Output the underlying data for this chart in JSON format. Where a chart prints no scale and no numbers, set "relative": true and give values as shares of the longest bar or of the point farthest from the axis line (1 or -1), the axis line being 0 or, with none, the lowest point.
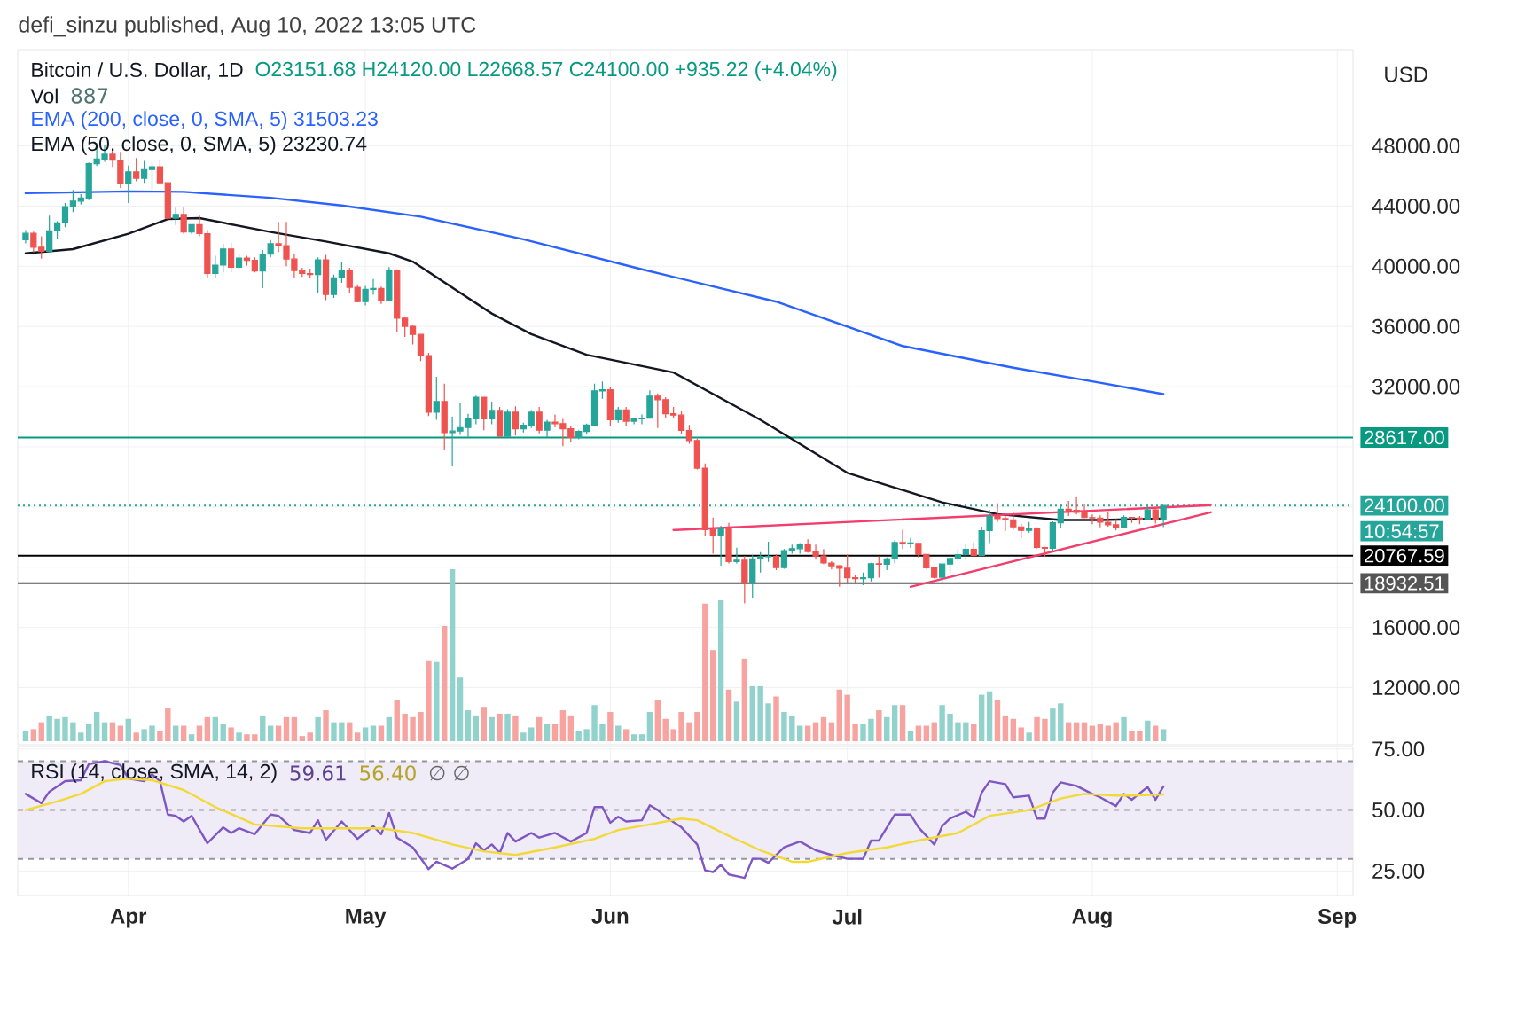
{
  "chart_data": [
    {
      "type": "candlestick",
      "title": "Bitcoin / U.S. Dollar, 1D",
      "subtitle": "O23151.68 H24120.00 L22668.57 C24100.00 +935.22 (+4.04%)",
      "ylabel": "USD",
      "annotations": [
        "defi_sinzu published, Aug 10, 2022 13:05 UTC",
        "10:54:57"
      ],
      "colors": [
        "#26a69a",
        "#ef5350",
        "#ef5350",
        "#26a69a",
        "#26a69a",
        "#26a69a",
        "#26a69a",
        "#26a69a",
        "#26a69a",
        "#26a69a",
        "#26a69a",
        "#ef5350",
        "#ef5350",
        "#26a69a",
        "#ef5350",
        "#26a69a",
        "#26a69a",
        "#ef5350",
        "#ef5350",
        "#26a69a",
        "#ef5350",
        "#26a69a",
        "#ef5350",
        "#ef5350",
        "#26a69a",
        "#26a69a",
        "#ef5350",
        "#26a69a",
        "#ef5350",
        "#ef5350",
        "#26a69a",
        "#26a69a",
        "#ef5350",
        "#ef5350",
        "#ef5350",
        "#ef5350",
        "#ef5350",
        "#26a69a",
        "#ef5350",
        "#26a69a",
        "#26a69a",
        "#ef5350",
        "#ef5350",
        "#26a69a",
        "#26a69a",
        "#ef5350",
        "#26a69a",
        "#ef5350",
        "#ef5350",
        "#ef5350",
        "#ef5350",
        "#ef5350",
        "#26a69a",
        "#ef5350",
        "#26a69a",
        "#26a69a",
        "#26a69a",
        "#26a69a",
        "#ef5350",
        "#26a69a",
        "#ef5350",
        "#26a69a",
        "#ef5350",
        "#26a69a",
        "#26a69a",
        "#ef5350",
        "#26a69a",
        "#ef5350",
        "#ef5350",
        "#ef5350",
        "#26a69a",
        "#26a69a",
        "#26a69a",
        "#26a69a",
        "#ef5350",
        "#26a69a",
        "#ef5350",
        "#26a69a",
        "#26a69a",
        "#26a69a",
        "#ef5350",
        "#ef5350",
        "#ef5350",
        "#ef5350",
        "#ef5350",
        "#ef5350",
        "#ef5350",
        "#ef5350",
        "#26a69a",
        "#ef5350",
        "#26a69a",
        "#ef5350",
        "#26a69a",
        "#26a69a",
        "#26a69a",
        "#ef5350",
        "#26a69a",
        "#26a69a",
        "#26a69a",
        "#ef5350",
        "#ef5350",
        "#ef5350",
        "#ef5350",
        "#ef5350",
        "#ef5350",
        "#ef5350",
        "#26a69a",
        "#26a69a",
        "#ef5350",
        "#26a69a",
        "#26a69a",
        "#ef5350",
        "#26a69a",
        "#ef5350",
        "#ef5350",
        "#ef5350",
        "#26a69a",
        "#26a69a",
        "#26a69a",
        "#26a69a",
        "#ef5350",
        "#26a69a",
        "#26a69a",
        "#ef5350",
        "#ef5350",
        "#ef5350",
        "#ef5350",
        "#26a69a",
        "#ef5350",
        "#ef5350",
        "#26a69a",
        "#26a69a",
        "#ef5350",
        "#ef5350",
        "#ef5350",
        "#ef5350",
        "#ef5350",
        "#ef5350",
        "#ef5350",
        "#26a69a",
        "#ef5350",
        "#ef5350",
        "#26a69a",
        "#ef5350",
        "#26a69a"
      ],
      "x": [
        "2022-03-19",
        "2022-03-20",
        "2022-03-21",
        "2022-03-22",
        "2022-03-23",
        "2022-03-24",
        "2022-03-25",
        "2022-03-26",
        "2022-03-27",
        "2022-03-28",
        "2022-03-29",
        "2022-03-30",
        "2022-03-31",
        "2022-04-01",
        "2022-04-02",
        "2022-04-03",
        "2022-04-04",
        "2022-04-05",
        "2022-04-06",
        "2022-04-07",
        "2022-04-08",
        "2022-04-09",
        "2022-04-10",
        "2022-04-11",
        "2022-04-12",
        "2022-04-13",
        "2022-04-14",
        "2022-04-15",
        "2022-04-16",
        "2022-04-17",
        "2022-04-18",
        "2022-04-19",
        "2022-04-20",
        "2022-04-21",
        "2022-04-22",
        "2022-04-23",
        "2022-04-24",
        "2022-04-25",
        "2022-04-26",
        "2022-04-27",
        "2022-04-28",
        "2022-04-29",
        "2022-04-30",
        "2022-05-01",
        "2022-05-02",
        "2022-05-03",
        "2022-05-04",
        "2022-05-05",
        "2022-05-06",
        "2022-05-07",
        "2022-05-08",
        "2022-05-09",
        "2022-05-10",
        "2022-05-11",
        "2022-05-12",
        "2022-05-13",
        "2022-05-14",
        "2022-05-15",
        "2022-05-16",
        "2022-05-17",
        "2022-05-18",
        "2022-05-19",
        "2022-05-20",
        "2022-05-21",
        "2022-05-22",
        "2022-05-23",
        "2022-05-24",
        "2022-05-25",
        "2022-05-26",
        "2022-05-27",
        "2022-05-28",
        "2022-05-29",
        "2022-05-30",
        "2022-05-31",
        "2022-06-01",
        "2022-06-02",
        "2022-06-03",
        "2022-06-04",
        "2022-06-05",
        "2022-06-06",
        "2022-06-07",
        "2022-06-08",
        "2022-06-09",
        "2022-06-10",
        "2022-06-11",
        "2022-06-12",
        "2022-06-13",
        "2022-06-14",
        "2022-06-15",
        "2022-06-16",
        "2022-06-17",
        "2022-06-18",
        "2022-06-19",
        "2022-06-20",
        "2022-06-21",
        "2022-06-22",
        "2022-06-23",
        "2022-06-24",
        "2022-06-25",
        "2022-06-26",
        "2022-06-27",
        "2022-06-28",
        "2022-06-29",
        "2022-06-30",
        "2022-07-01",
        "2022-07-02",
        "2022-07-03",
        "2022-07-04",
        "2022-07-05",
        "2022-07-06",
        "2022-07-07",
        "2022-07-08",
        "2022-07-09",
        "2022-07-10",
        "2022-07-11",
        "2022-07-12",
        "2022-07-13",
        "2022-07-14",
        "2022-07-15",
        "2022-07-16",
        "2022-07-17",
        "2022-07-18",
        "2022-07-19",
        "2022-07-20",
        "2022-07-21",
        "2022-07-22",
        "2022-07-23",
        "2022-07-24",
        "2022-07-25",
        "2022-07-26",
        "2022-07-27",
        "2022-07-28",
        "2022-07-29",
        "2022-07-30",
        "2022-07-31",
        "2022-08-01",
        "2022-08-02",
        "2022-08-03",
        "2022-08-04",
        "2022-08-05",
        "2022-08-06",
        "2022-08-07",
        "2022-08-08",
        "2022-08-09",
        "2022-08-10"
      ],
      "ohlc": [
        [
          41770,
          42400,
          41530,
          42190
        ],
        [
          42190,
          42300,
          40940,
          41260
        ],
        [
          41260,
          42000,
          40500,
          41000
        ],
        [
          41000,
          43360,
          40900,
          42360
        ],
        [
          42360,
          43000,
          41800,
          42890
        ],
        [
          42890,
          44200,
          42600,
          43960
        ],
        [
          43960,
          45080,
          43600,
          44330
        ],
        [
          44330,
          44800,
          44100,
          44530
        ],
        [
          44530,
          46900,
          44400,
          46820
        ],
        [
          46820,
          48190,
          46670,
          47130
        ],
        [
          47130,
          48100,
          46950,
          47450
        ],
        [
          47450,
          47700,
          46600,
          47060
        ],
        [
          47060,
          47600,
          45200,
          45530
        ],
        [
          45530,
          46700,
          44200,
          46280
        ],
        [
          46280,
          47200,
          45650,
          45850
        ],
        [
          45850,
          47000,
          45550,
          46430
        ],
        [
          46430,
          46900,
          45100,
          46620
        ],
        [
          46620,
          47100,
          45500,
          45550
        ],
        [
          45550,
          45550,
          43120,
          43200
        ],
        [
          43200,
          43900,
          42750,
          43450
        ],
        [
          43450,
          43950,
          42150,
          42280
        ],
        [
          42280,
          42800,
          42150,
          42770
        ],
        [
          42770,
          43400,
          42000,
          42170
        ],
        [
          42170,
          42400,
          39200,
          39530
        ],
        [
          39530,
          40700,
          39250,
          40080
        ],
        [
          40080,
          41500,
          39600,
          41150
        ],
        [
          41150,
          41550,
          39600,
          39940
        ],
        [
          39940,
          40850,
          39800,
          40550
        ],
        [
          40550,
          40700,
          40050,
          40400
        ],
        [
          40400,
          40600,
          39600,
          39690
        ],
        [
          39690,
          41100,
          38550,
          40800
        ],
        [
          40800,
          41750,
          40600,
          41500
        ],
        [
          41500,
          42950,
          40950,
          41370
        ],
        [
          41370,
          42950,
          40000,
          40480
        ],
        [
          40480,
          40800,
          39200,
          39710
        ],
        [
          39710,
          39900,
          39300,
          39520
        ],
        [
          39520,
          39850,
          39200,
          39450
        ],
        [
          39450,
          40600,
          38200,
          40430
        ],
        [
          40430,
          40750,
          37750,
          38120
        ],
        [
          38120,
          39450,
          37900,
          39240
        ],
        [
          39240,
          40300,
          38900,
          39740
        ],
        [
          39740,
          39900,
          38200,
          38600
        ],
        [
          38600,
          38800,
          37600,
          37650
        ],
        [
          37650,
          38700,
          37400,
          38470
        ],
        [
          38470,
          39150,
          38100,
          38520
        ],
        [
          38520,
          38650,
          37500,
          37720
        ],
        [
          37720,
          39950,
          37700,
          39690
        ],
        [
          39690,
          39800,
          35600,
          36550
        ],
        [
          36550,
          36650,
          35300,
          36010
        ],
        [
          36010,
          36100,
          34800,
          35470
        ],
        [
          35470,
          35500,
          33700,
          34060
        ],
        [
          34060,
          34250,
          30050,
          30300
        ],
        [
          30300,
          32650,
          29800,
          31020
        ],
        [
          31020,
          32200,
          27800,
          28940
        ],
        [
          28940,
          30000,
          26700,
          29050
        ],
        [
          29050,
          30900,
          28800,
          29280
        ],
        [
          29280,
          30200,
          28600,
          29860
        ],
        [
          29860,
          31400,
          29500,
          31300
        ],
        [
          31300,
          31300,
          29100,
          29860
        ],
        [
          29860,
          31000,
          29500,
          30420
        ],
        [
          30420,
          30650,
          28700,
          28700
        ],
        [
          28700,
          30500,
          28700,
          30300
        ],
        [
          30300,
          30700,
          28750,
          29200
        ],
        [
          29200,
          29600,
          28950,
          29430
        ],
        [
          29430,
          30450,
          29250,
          30300
        ],
        [
          30300,
          30650,
          28900,
          29110
        ],
        [
          29110,
          29800,
          28650,
          29650
        ],
        [
          29650,
          30150,
          29300,
          29540
        ],
        [
          29540,
          29850,
          28050,
          29200
        ],
        [
          29200,
          29350,
          28300,
          28630
        ],
        [
          28630,
          29100,
          28500,
          29020
        ],
        [
          29020,
          29550,
          28850,
          29450
        ],
        [
          29450,
          32200,
          29350,
          31720
        ],
        [
          31720,
          32350,
          31200,
          31790
        ],
        [
          31790,
          31950,
          29400,
          29800
        ],
        [
          29800,
          30650,
          29600,
          30450
        ],
        [
          30450,
          30650,
          29350,
          29700
        ],
        [
          29700,
          29950,
          29500,
          29860
        ],
        [
          29860,
          30150,
          29500,
          29900
        ],
        [
          29900,
          31750,
          29900,
          31370
        ],
        [
          31370,
          31550,
          29250,
          31130
        ],
        [
          31130,
          31300,
          29900,
          30200
        ],
        [
          30200,
          30650,
          29950,
          30110
        ],
        [
          30110,
          30350,
          28850,
          29090
        ],
        [
          29090,
          29450,
          28200,
          28420
        ],
        [
          28420,
          28550,
          26500,
          26580
        ],
        [
          26580,
          26900,
          22100,
          22490
        ],
        [
          22490,
          23300,
          20900,
          22130
        ],
        [
          22130,
          22750,
          20100,
          22580
        ],
        [
          22580,
          22950,
          20250,
          20380
        ],
        [
          20380,
          21300,
          20250,
          20470
        ],
        [
          20470,
          20750,
          17600,
          19000
        ],
        [
          19000,
          20800,
          17950,
          20550
        ],
        [
          20550,
          21000,
          19650,
          20700
        ],
        [
          20700,
          21700,
          20350,
          20720
        ],
        [
          20720,
          20850,
          19800,
          19970
        ],
        [
          19970,
          21200,
          19900,
          21100
        ],
        [
          21100,
          21500,
          20900,
          21230
        ],
        [
          21230,
          21600,
          20900,
          21490
        ],
        [
          21490,
          21850,
          20950,
          21040
        ],
        [
          21040,
          21500,
          20500,
          20740
        ],
        [
          20740,
          21200,
          20200,
          20280
        ],
        [
          20280,
          20400,
          19850,
          20100
        ],
        [
          20100,
          20150,
          18700,
          19930
        ],
        [
          19930,
          20850,
          18950,
          19300
        ],
        [
          19300,
          19450,
          18950,
          19240
        ],
        [
          19240,
          19650,
          18800,
          19300
        ],
        [
          19300,
          20300,
          19050,
          20230
        ],
        [
          20230,
          20700,
          19300,
          20190
        ],
        [
          20190,
          20650,
          19800,
          20550
        ],
        [
          20550,
          21800,
          20250,
          21640
        ],
        [
          21640,
          22500,
          21200,
          21590
        ],
        [
          21590,
          21950,
          21300,
          21610
        ],
        [
          21590,
          21600,
          20650,
          20850
        ],
        [
          20850,
          20850,
          19900,
          19960
        ],
        [
          19960,
          20000,
          19250,
          19330
        ],
        [
          19330,
          20250,
          18900,
          20210
        ],
        [
          20210,
          20850,
          19600,
          20580
        ],
        [
          20580,
          21200,
          20400,
          20830
        ],
        [
          20830,
          21550,
          20500,
          21190
        ],
        [
          21190,
          21650,
          20750,
          20790
        ],
        [
          20790,
          22700,
          20780,
          22430
        ],
        [
          22430,
          23800,
          21600,
          23400
        ],
        [
          23400,
          24250,
          23000,
          23230
        ],
        [
          23230,
          23400,
          22400,
          23150
        ],
        [
          23150,
          23700,
          22500,
          22680
        ],
        [
          22680,
          22900,
          21950,
          22450
        ],
        [
          22450,
          23000,
          22300,
          22580
        ],
        [
          22580,
          22650,
          21250,
          21310
        ],
        [
          21310,
          21350,
          20700,
          21250
        ],
        [
          21250,
          23050,
          21050,
          22950
        ],
        [
          22950,
          24150,
          22600,
          23850
        ],
        [
          23850,
          24400,
          23400,
          23780
        ],
        [
          23780,
          24650,
          23500,
          23640
        ],
        [
          23640,
          24200,
          23250,
          23300
        ],
        [
          23300,
          23500,
          22850,
          23270
        ],
        [
          23270,
          23450,
          22650,
          22990
        ],
        [
          22990,
          23650,
          22700,
          22820
        ],
        [
          22820,
          23200,
          22450,
          22620
        ],
        [
          22620,
          23450,
          22600,
          23310
        ],
        [
          23310,
          23350,
          22950,
          23270
        ],
        [
          23270,
          23400,
          22850,
          23180
        ],
        [
          23180,
          24200,
          23150,
          23810
        ],
        [
          23810,
          23950,
          22900,
          23151.68
        ],
        [
          23151.68,
          24120.0,
          22668.57,
          24100.0
        ]
      ],
      "series": [
        {
          "type": "line",
          "name": "EMA (200, close, 0, SMA, 5) 31503.23",
          "color": "#2962ff",
          "x": [
            "2022-03-19",
            "2022-04-01",
            "2022-04-08",
            "2022-04-19",
            "2022-04-28",
            "2022-05-08",
            "2022-05-21",
            "2022-06-05",
            "2022-06-22",
            "2022-07-08",
            "2022-07-22",
            "2022-08-01",
            "2022-08-10"
          ],
          "values": [
            44860,
            44980,
            44950,
            44550,
            44040,
            43300,
            41800,
            39800,
            37650,
            34700,
            33260,
            32350,
            31503.23
          ]
        },
        {
          "type": "line",
          "name": "EMA (50, close, 0, SMA, 5) 23230.74",
          "color": "#131722",
          "x": [
            "2022-03-19",
            "2022-03-25",
            "2022-04-01",
            "2022-04-06",
            "2022-04-10",
            "2022-04-19",
            "2022-04-26",
            "2022-05-04",
            "2022-05-07",
            "2022-05-13",
            "2022-05-17",
            "2022-05-22",
            "2022-05-29",
            "2022-06-09",
            "2022-06-20",
            "2022-07-01",
            "2022-07-13",
            "2022-07-20",
            "2022-07-28",
            "2022-08-02",
            "2022-08-10"
          ],
          "values": [
            40860,
            41140,
            42160,
            43140,
            43200,
            42280,
            41650,
            40860,
            40310,
            38240,
            36860,
            35490,
            34120,
            32940,
            29800,
            26270,
            24310,
            23530,
            23140,
            23140,
            23230.74
          ]
        },
        {
          "type": "line",
          "color": "#f23d6d",
          "x": [
            "2022-06-09",
            "2022-08-16"
          ],
          "values": [
            22470,
            24120
          ]
        },
        {
          "type": "line",
          "color": "#f23d6d",
          "x": [
            "2022-07-09",
            "2022-08-16"
          ],
          "values": [
            18700,
            23650
          ]
        }
      ],
      "ref_lines": [
        {
          "axis": "y",
          "value": 28617,
          "label": "28617.00",
          "color": "#089981"
        },
        {
          "axis": "y",
          "value": 24100,
          "label": "24100.00",
          "color": "#26a69a",
          "line_style": "dotted"
        },
        {
          "axis": "y",
          "value": 20767.59,
          "label": "20767.59",
          "color": "#000000"
        },
        {
          "axis": "y",
          "value": 18932.51,
          "label": "18932.51",
          "color": "#555555"
        }
      ],
      "xlim": [
        "2022-03-18",
        "2022-09-03"
      ],
      "ylim": [
        8200,
        54400
      ],
      "xticks": [
        {
          "value": "2022-04-01",
          "label": null
        },
        {
          "value": "2022-05-01",
          "label": null
        },
        {
          "value": "2022-06-01",
          "label": null
        },
        {
          "value": "2022-07-01",
          "label": null
        },
        {
          "value": "2022-08-01",
          "label": null
        },
        {
          "value": "2022-09-01",
          "label": null
        }
      ],
      "yticks": [
        {
          "value": 12000,
          "label": "12000.00"
        },
        {
          "value": 16000,
          "label": "16000.00"
        },
        {
          "value": 20000,
          "label": null
        },
        {
          "value": 24000,
          "label": null
        },
        {
          "value": 28000,
          "label": null
        },
        {
          "value": 32000,
          "label": "32000.00"
        },
        {
          "value": 36000,
          "label": "36000.00"
        },
        {
          "value": 40000,
          "label": "40000.00"
        },
        {
          "value": 44000,
          "label": "44000.00"
        },
        {
          "value": 48000,
          "label": "48000.00"
        }
      ],
      "tick_labels": "y",
      "grid": true,
      "legend": "top left"
    },
    {
      "type": "bar",
      "title": "Vol",
      "annotations": [
        "887"
      ],
      "relative": true,
      "tick_labels": false,
      "xlim": [
        "2022-03-18",
        "2022-09-03"
      ],
      "x": [
        "2022-03-19",
        "2022-03-20",
        "2022-03-21",
        "2022-03-22",
        "2022-03-23",
        "2022-03-24",
        "2022-03-25",
        "2022-03-26",
        "2022-03-27",
        "2022-03-28",
        "2022-03-29",
        "2022-03-30",
        "2022-03-31",
        "2022-04-01",
        "2022-04-02",
        "2022-04-03",
        "2022-04-04",
        "2022-04-05",
        "2022-04-06",
        "2022-04-07",
        "2022-04-08",
        "2022-04-09",
        "2022-04-10",
        "2022-04-11",
        "2022-04-12",
        "2022-04-13",
        "2022-04-14",
        "2022-04-15",
        "2022-04-16",
        "2022-04-17",
        "2022-04-18",
        "2022-04-19",
        "2022-04-20",
        "2022-04-21",
        "2022-04-22",
        "2022-04-23",
        "2022-04-24",
        "2022-04-25",
        "2022-04-26",
        "2022-04-27",
        "2022-04-28",
        "2022-04-29",
        "2022-04-30",
        "2022-05-01",
        "2022-05-02",
        "2022-05-03",
        "2022-05-04",
        "2022-05-05",
        "2022-05-06",
        "2022-05-07",
        "2022-05-08",
        "2022-05-09",
        "2022-05-10",
        "2022-05-11",
        "2022-05-12",
        "2022-05-13",
        "2022-05-14",
        "2022-05-15",
        "2022-05-16",
        "2022-05-17",
        "2022-05-18",
        "2022-05-19",
        "2022-05-20",
        "2022-05-21",
        "2022-05-22",
        "2022-05-23",
        "2022-05-24",
        "2022-05-25",
        "2022-05-26",
        "2022-05-27",
        "2022-05-28",
        "2022-05-29",
        "2022-05-30",
        "2022-05-31",
        "2022-06-01",
        "2022-06-02",
        "2022-06-03",
        "2022-06-04",
        "2022-06-05",
        "2022-06-06",
        "2022-06-07",
        "2022-06-08",
        "2022-06-09",
        "2022-06-10",
        "2022-06-11",
        "2022-06-12",
        "2022-06-13",
        "2022-06-14",
        "2022-06-15",
        "2022-06-16",
        "2022-06-17",
        "2022-06-18",
        "2022-06-19",
        "2022-06-20",
        "2022-06-21",
        "2022-06-22",
        "2022-06-23",
        "2022-06-24",
        "2022-06-25",
        "2022-06-26",
        "2022-06-27",
        "2022-06-28",
        "2022-06-29",
        "2022-06-30",
        "2022-07-01",
        "2022-07-02",
        "2022-07-03",
        "2022-07-04",
        "2022-07-05",
        "2022-07-06",
        "2022-07-07",
        "2022-07-08",
        "2022-07-09",
        "2022-07-10",
        "2022-07-11",
        "2022-07-12",
        "2022-07-13",
        "2022-07-14",
        "2022-07-15",
        "2022-07-16",
        "2022-07-17",
        "2022-07-18",
        "2022-07-19",
        "2022-07-20",
        "2022-07-21",
        "2022-07-22",
        "2022-07-23",
        "2022-07-24",
        "2022-07-25",
        "2022-07-26",
        "2022-07-27",
        "2022-07-28",
        "2022-07-29",
        "2022-07-30",
        "2022-07-31",
        "2022-08-01",
        "2022-08-02",
        "2022-08-03",
        "2022-08-04",
        "2022-08-05",
        "2022-08-06",
        "2022-08-07",
        "2022-08-08",
        "2022-08-09",
        "2022-08-10"
      ],
      "values": [
        0.06,
        0.07,
        0.11,
        0.15,
        0.13,
        0.14,
        0.11,
        0.05,
        0.1,
        0.17,
        0.11,
        0.11,
        0.09,
        0.13,
        0.05,
        0.07,
        0.09,
        0.06,
        0.19,
        0.09,
        0.09,
        0.04,
        0.09,
        0.14,
        0.14,
        0.1,
        0.08,
        0.05,
        0.04,
        0.04,
        0.15,
        0.09,
        0.09,
        0.14,
        0.14,
        0.03,
        0.05,
        0.14,
        0.18,
        0.11,
        0.11,
        0.11,
        0.05,
        0.08,
        0.09,
        0.09,
        0.14,
        0.24,
        0.16,
        0.14,
        0.17,
        0.47,
        0.46,
        0.67,
        1,
        0.37,
        0.18,
        0.15,
        0.2,
        0.14,
        0.16,
        0.16,
        0.15,
        0.05,
        0.08,
        0.14,
        0.1,
        0.1,
        0.18,
        0.15,
        0.06,
        0.07,
        0.21,
        0.1,
        0.17,
        0.09,
        0.07,
        0.04,
        0.04,
        0.17,
        0.24,
        0.13,
        0.07,
        0.17,
        0.11,
        0.17,
        0.8,
        0.53,
        0.82,
        0.3,
        0.23,
        0.48,
        0.32,
        0.32,
        0.22,
        0.26,
        0.17,
        0.15,
        0.09,
        0.09,
        0.11,
        0.14,
        0.11,
        0.3,
        0.27,
        0.1,
        0.1,
        0.13,
        0.18,
        0.14,
        0.21,
        0.21,
        0.06,
        0.09,
        0.09,
        0.11,
        0.21,
        0.16,
        0.11,
        0.11,
        0.1,
        0.27,
        0.29,
        0.24,
        0.15,
        0.13,
        0.08,
        0.05,
        0.14,
        0.13,
        0.19,
        0.22,
        0.11,
        0.11,
        0.11,
        0.09,
        0.1,
        0.09,
        0.11,
        0.14,
        0.06,
        0.06,
        0.12,
        0.09,
        0.07
      ],
      "colors": [
        "#92d2cc",
        "#f7a4a0",
        "#f7a4a0",
        "#92d2cc",
        "#92d2cc",
        "#92d2cc",
        "#92d2cc",
        "#92d2cc",
        "#92d2cc",
        "#92d2cc",
        "#92d2cc",
        "#f7a4a0",
        "#f7a4a0",
        "#92d2cc",
        "#f7a4a0",
        "#92d2cc",
        "#92d2cc",
        "#f7a4a0",
        "#f7a4a0",
        "#92d2cc",
        "#f7a4a0",
        "#92d2cc",
        "#f7a4a0",
        "#f7a4a0",
        "#92d2cc",
        "#92d2cc",
        "#f7a4a0",
        "#92d2cc",
        "#f7a4a0",
        "#f7a4a0",
        "#92d2cc",
        "#92d2cc",
        "#f7a4a0",
        "#f7a4a0",
        "#f7a4a0",
        "#f7a4a0",
        "#f7a4a0",
        "#92d2cc",
        "#f7a4a0",
        "#92d2cc",
        "#92d2cc",
        "#f7a4a0",
        "#f7a4a0",
        "#92d2cc",
        "#92d2cc",
        "#f7a4a0",
        "#92d2cc",
        "#f7a4a0",
        "#f7a4a0",
        "#f7a4a0",
        "#f7a4a0",
        "#f7a4a0",
        "#92d2cc",
        "#f7a4a0",
        "#92d2cc",
        "#92d2cc",
        "#92d2cc",
        "#92d2cc",
        "#f7a4a0",
        "#92d2cc",
        "#f7a4a0",
        "#92d2cc",
        "#f7a4a0",
        "#92d2cc",
        "#92d2cc",
        "#f7a4a0",
        "#92d2cc",
        "#f7a4a0",
        "#f7a4a0",
        "#f7a4a0",
        "#92d2cc",
        "#92d2cc",
        "#92d2cc",
        "#92d2cc",
        "#f7a4a0",
        "#92d2cc",
        "#f7a4a0",
        "#92d2cc",
        "#92d2cc",
        "#92d2cc",
        "#f7a4a0",
        "#f7a4a0",
        "#f7a4a0",
        "#f7a4a0",
        "#f7a4a0",
        "#f7a4a0",
        "#f7a4a0",
        "#f7a4a0",
        "#92d2cc",
        "#f7a4a0",
        "#92d2cc",
        "#f7a4a0",
        "#92d2cc",
        "#92d2cc",
        "#92d2cc",
        "#f7a4a0",
        "#92d2cc",
        "#92d2cc",
        "#92d2cc",
        "#f7a4a0",
        "#f7a4a0",
        "#f7a4a0",
        "#f7a4a0",
        "#f7a4a0",
        "#f7a4a0",
        "#f7a4a0",
        "#92d2cc",
        "#92d2cc",
        "#f7a4a0",
        "#92d2cc",
        "#92d2cc",
        "#f7a4a0",
        "#92d2cc",
        "#f7a4a0",
        "#f7a4a0",
        "#f7a4a0",
        "#92d2cc",
        "#92d2cc",
        "#92d2cc",
        "#92d2cc",
        "#f7a4a0",
        "#92d2cc",
        "#92d2cc",
        "#f7a4a0",
        "#f7a4a0",
        "#f7a4a0",
        "#f7a4a0",
        "#92d2cc",
        "#f7a4a0",
        "#f7a4a0",
        "#92d2cc",
        "#92d2cc",
        "#f7a4a0",
        "#f7a4a0",
        "#f7a4a0",
        "#f7a4a0",
        "#f7a4a0",
        "#f7a4a0",
        "#f7a4a0",
        "#92d2cc",
        "#f7a4a0",
        "#f7a4a0",
        "#92d2cc",
        "#f7a4a0",
        "#92d2cc"
      ]
    },
    {
      "type": "line",
      "title": "RSI (14, close, SMA, 14, 2)",
      "annotations": [
        "59.61",
        "56.40",
        "∅ ∅"
      ],
      "series": [
        {
          "color": "#7e57c2",
          "x": [
            "2022-03-19",
            "2022-03-21",
            "2022-03-22",
            "2022-03-24",
            "2022-03-26",
            "2022-03-27",
            "2022-03-29",
            "2022-03-31",
            "2022-04-01",
            "2022-04-03",
            "2022-04-04",
            "2022-04-05",
            "2022-04-06",
            "2022-04-07",
            "2022-04-08",
            "2022-04-09",
            "2022-04-11",
            "2022-04-13",
            "2022-04-14",
            "2022-04-15",
            "2022-04-17",
            "2022-04-19",
            "2022-04-20",
            "2022-04-22",
            "2022-04-24",
            "2022-04-25",
            "2022-04-26",
            "2022-04-28",
            "2022-04-30",
            "2022-05-02",
            "2022-05-03",
            "2022-05-04",
            "2022-05-05",
            "2022-05-07",
            "2022-05-09",
            "2022-05-10",
            "2022-05-12",
            "2022-05-14",
            "2022-05-15",
            "2022-05-16",
            "2022-05-17",
            "2022-05-18",
            "2022-05-19",
            "2022-05-20",
            "2022-05-22",
            "2022-05-23",
            "2022-05-25",
            "2022-05-27",
            "2022-05-29",
            "2022-05-30",
            "2022-05-31",
            "2022-06-01",
            "2022-06-02",
            "2022-06-03",
            "2022-06-05",
            "2022-06-06",
            "2022-06-07",
            "2022-06-08",
            "2022-06-10",
            "2022-06-12",
            "2022-06-13",
            "2022-06-14",
            "2022-06-15",
            "2022-06-16",
            "2022-06-18",
            "2022-06-19",
            "2022-06-20",
            "2022-06-21",
            "2022-06-23",
            "2022-06-25",
            "2022-06-27",
            "2022-06-29",
            "2022-07-01",
            "2022-07-03",
            "2022-07-04",
            "2022-07-05",
            "2022-07-07",
            "2022-07-09",
            "2022-07-10",
            "2022-07-12",
            "2022-07-13",
            "2022-07-14",
            "2022-07-16",
            "2022-07-17",
            "2022-07-18",
            "2022-07-19",
            "2022-07-21",
            "2022-07-22",
            "2022-07-24",
            "2022-07-25",
            "2022-07-26",
            "2022-07-27",
            "2022-07-28",
            "2022-07-30",
            "2022-08-01",
            "2022-08-02",
            "2022-08-04",
            "2022-08-05",
            "2022-08-06",
            "2022-08-08",
            "2022-08-09",
            "2022-08-10"
          ],
          "values": [
            56.6,
            52.8,
            57.5,
            61.8,
            62.2,
            68.8,
            70.0,
            68.4,
            62.9,
            61.8,
            64.6,
            61.8,
            48.1,
            47.6,
            45.3,
            47.6,
            36.4,
            42.9,
            40.6,
            42.5,
            40.1,
            48.1,
            47.6,
            41.8,
            40.6,
            45.8,
            37.8,
            45.3,
            38.2,
            43.4,
            40.1,
            48.8,
            38.7,
            34.7,
            25.8,
            28.8,
            26.0,
            30.0,
            36.4,
            33.5,
            35.9,
            32.4,
            40.6,
            37.1,
            40.6,
            38.7,
            40.6,
            37.1,
            40.6,
            51.2,
            51.2,
            44.8,
            47.2,
            45.3,
            45.8,
            51.9,
            50.0,
            47.2,
            42.9,
            35.9,
            25.3,
            24.6,
            27.6,
            23.6,
            22.2,
            30.0,
            30.0,
            28.4,
            34.7,
            37.1,
            33.5,
            31.6,
            30.0,
            30.0,
            37.5,
            37.5,
            48.1,
            48.1,
            42.9,
            35.9,
            43.4,
            46.5,
            49.3,
            46.9,
            57.1,
            61.8,
            60.6,
            55.2,
            55.9,
            46.5,
            46.5,
            57.1,
            61.3,
            59.9,
            56.6,
            55.2,
            51.6,
            56.6,
            54.2,
            59.4,
            54.2,
            59.61
          ]
        },
        {
          "color": "#f2d936",
          "x": [
            "2022-03-19",
            "2022-03-23",
            "2022-03-26",
            "2022-03-29",
            "2022-04-01",
            "2022-04-04",
            "2022-04-08",
            "2022-04-12",
            "2022-04-17",
            "2022-04-23",
            "2022-04-27",
            "2022-05-03",
            "2022-05-07",
            "2022-05-12",
            "2022-05-16",
            "2022-05-20",
            "2022-05-25",
            "2022-05-30",
            "2022-06-02",
            "2022-06-06",
            "2022-06-10",
            "2022-06-12",
            "2022-06-16",
            "2022-06-20",
            "2022-06-24",
            "2022-06-26",
            "2022-07-01",
            "2022-07-06",
            "2022-07-10",
            "2022-07-15",
            "2022-07-19",
            "2022-07-24",
            "2022-07-28",
            "2022-07-31",
            "2022-08-04",
            "2022-08-06",
            "2022-08-10"
          ],
          "values": [
            50.0,
            53.5,
            56.6,
            61.8,
            62.9,
            62.2,
            58.2,
            51.2,
            44.1,
            42.5,
            42.5,
            42.5,
            40.6,
            35.9,
            33.1,
            31.6,
            34.7,
            38.2,
            41.8,
            44.1,
            46.5,
            45.8,
            39.4,
            33.5,
            28.8,
            28.8,
            32.4,
            34.7,
            37.5,
            40.6,
            47.6,
            50.0,
            54.7,
            56.6,
            55.9,
            55.9,
            56.4
          ]
        }
      ],
      "bands": [
        {
          "axis": "y",
          "from": 30,
          "to": 70,
          "color": "#efebf7"
        }
      ],
      "ref_lines": [
        {
          "axis": "y",
          "value": 70,
          "color": "#9598a1",
          "line_style": "dashed"
        },
        {
          "axis": "y",
          "value": 50,
          "color": "#9598a1",
          "line_style": "dashed"
        },
        {
          "axis": "y",
          "value": 30,
          "color": "#9598a1",
          "line_style": "dashed"
        }
      ],
      "xlim": [
        "2022-03-18",
        "2022-09-03"
      ],
      "ylim": [
        15,
        76
      ],
      "xticks": [
        {
          "value": "2022-04-01",
          "label": "Apr"
        },
        {
          "value": "2022-05-01",
          "label": "May"
        },
        {
          "value": "2022-06-01",
          "label": "Jun"
        },
        {
          "value": "2022-07-01",
          "label": "Jul"
        },
        {
          "value": "2022-08-01",
          "label": "Aug"
        },
        {
          "value": "2022-09-01",
          "label": "Sep"
        }
      ],
      "yticks": [
        {
          "value": 25,
          "label": "25.00"
        },
        {
          "value": 50,
          "label": "50.00"
        },
        {
          "value": 75,
          "label": "75.00"
        }
      ],
      "grid": true
    }
  ]
}
